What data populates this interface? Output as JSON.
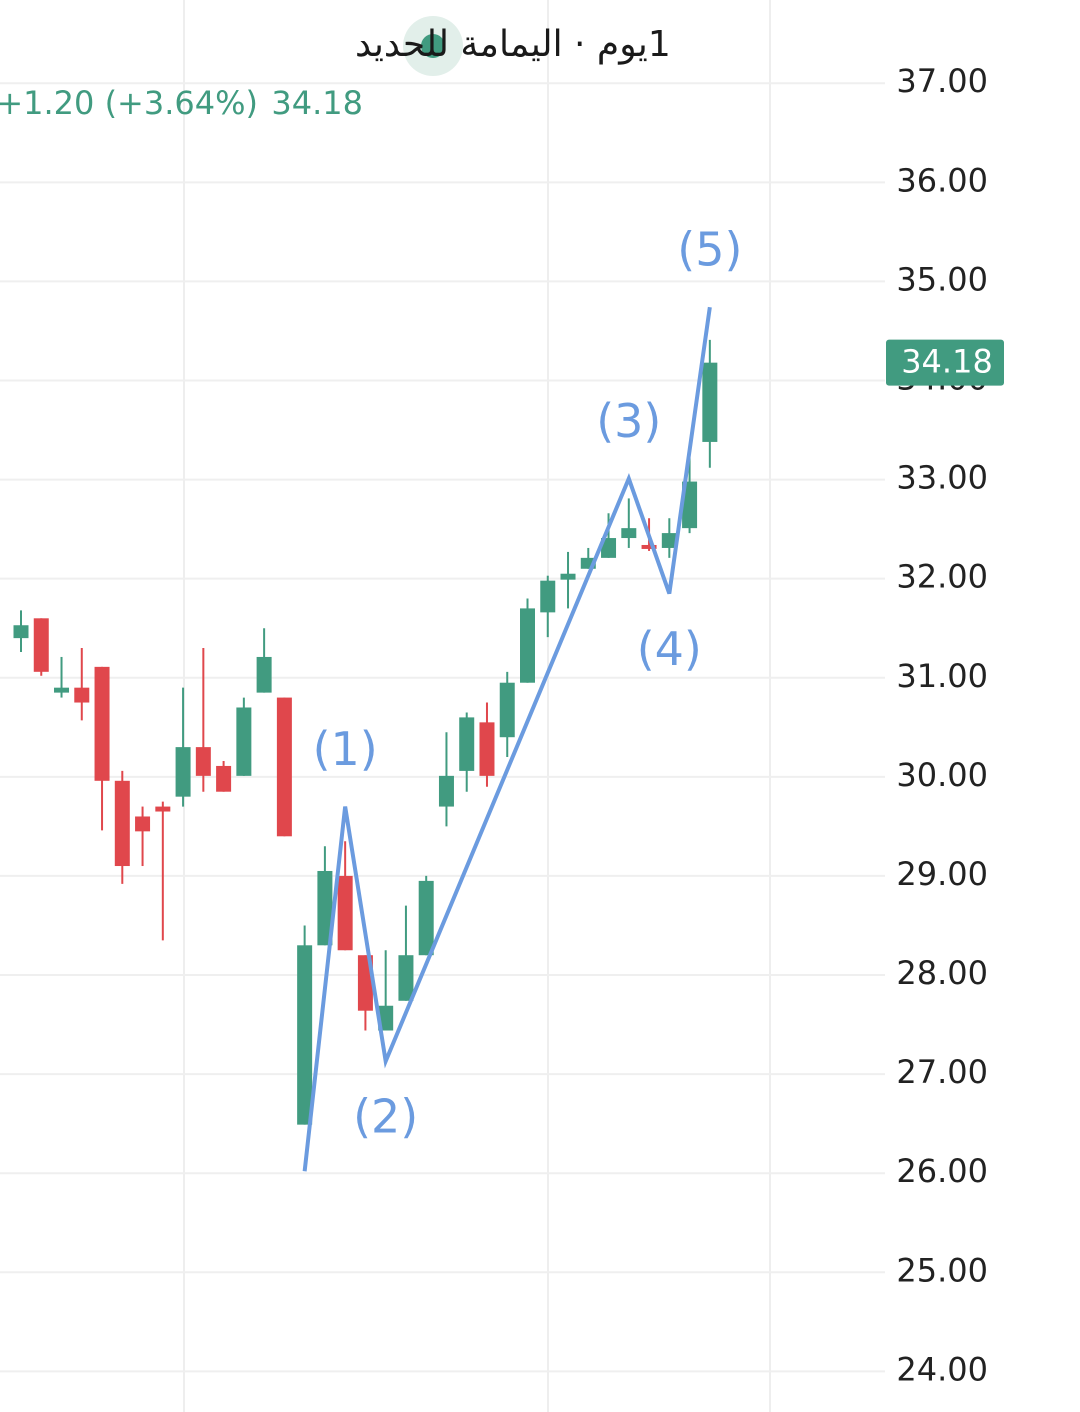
{
  "chart_data": {
    "type": "candlestick",
    "title": "1يوم · اليمامة للحديد",
    "change_text": "+1.20 (+3.64%)",
    "last_price": 34.18,
    "up_color": "#419b80",
    "down_color": "#e0474c",
    "grid": true,
    "ylim": [
      23.59,
      37.84
    ],
    "yticks": [
      {
        "value": 24,
        "label": "24.00"
      },
      {
        "value": 25,
        "label": "25.00"
      },
      {
        "value": 26,
        "label": "26.00"
      },
      {
        "value": 27,
        "label": "27.00"
      },
      {
        "value": 28,
        "label": "28.00"
      },
      {
        "value": 29,
        "label": "29.00"
      },
      {
        "value": 30,
        "label": "30.00"
      },
      {
        "value": 31,
        "label": "31.00"
      },
      {
        "value": 32,
        "label": "32.00"
      },
      {
        "value": 33,
        "label": "33.00"
      },
      {
        "value": 34,
        "label": "34.00"
      },
      {
        "value": 35,
        "label": "35.00"
      },
      {
        "value": 36,
        "label": "36.00"
      },
      {
        "value": 37,
        "label": "37.00"
      }
    ],
    "open": [
      31.4,
      31.6,
      30.85,
      30.9,
      31.11,
      29.96,
      29.6,
      29.7,
      29.8,
      30.3,
      30.11,
      30.01,
      30.85,
      30.8,
      26.49,
      28.3,
      29.0,
      28.2,
      27.44,
      27.74,
      28.2,
      29.7,
      30.06,
      30.55,
      30.4,
      30.95,
      31.66,
      31.99,
      32.1,
      32.21,
      32.41,
      32.34,
      32.31,
      32.51,
      33.38
    ],
    "high": [
      31.68,
      31.6,
      31.21,
      31.3,
      31.11,
      30.06,
      29.7,
      29.75,
      30.9,
      31.3,
      30.16,
      30.8,
      31.5,
      30.8,
      28.5,
      29.3,
      29.35,
      28.2,
      28.25,
      28.7,
      29.0,
      30.45,
      30.65,
      30.75,
      31.06,
      31.8,
      32.03,
      32.27,
      32.31,
      32.66,
      32.81,
      32.61,
      32.61,
      33.22,
      34.41
    ],
    "low": [
      31.26,
      31.02,
      30.8,
      30.57,
      29.46,
      28.92,
      29.1,
      28.35,
      29.7,
      29.85,
      29.85,
      30.01,
      30.85,
      29.4,
      26.49,
      28.3,
      28.25,
      27.44,
      27.44,
      27.74,
      28.2,
      29.5,
      29.85,
      29.9,
      30.2,
      30.95,
      31.41,
      31.7,
      32.1,
      32.21,
      32.31,
      32.28,
      32.21,
      32.46,
      33.12
    ],
    "close": [
      31.53,
      31.06,
      30.9,
      30.75,
      29.96,
      29.1,
      29.45,
      29.65,
      30.3,
      30.01,
      29.85,
      30.7,
      31.21,
      29.4,
      28.3,
      29.05,
      28.25,
      27.64,
      27.69,
      28.2,
      28.95,
      30.01,
      30.6,
      30.01,
      30.95,
      31.7,
      31.98,
      32.05,
      32.21,
      32.41,
      32.51,
      32.3,
      32.46,
      32.98,
      34.18
    ],
    "wave": {
      "color": "#6b9bdf",
      "index": [
        14,
        16,
        18,
        30,
        32,
        34
      ],
      "values": [
        26.02,
        29.7,
        27.13,
        33.01,
        31.85,
        34.74
      ],
      "labels": [
        null,
        "(1)",
        "(2)",
        "(3)",
        "(4)",
        "(5)"
      ]
    }
  }
}
